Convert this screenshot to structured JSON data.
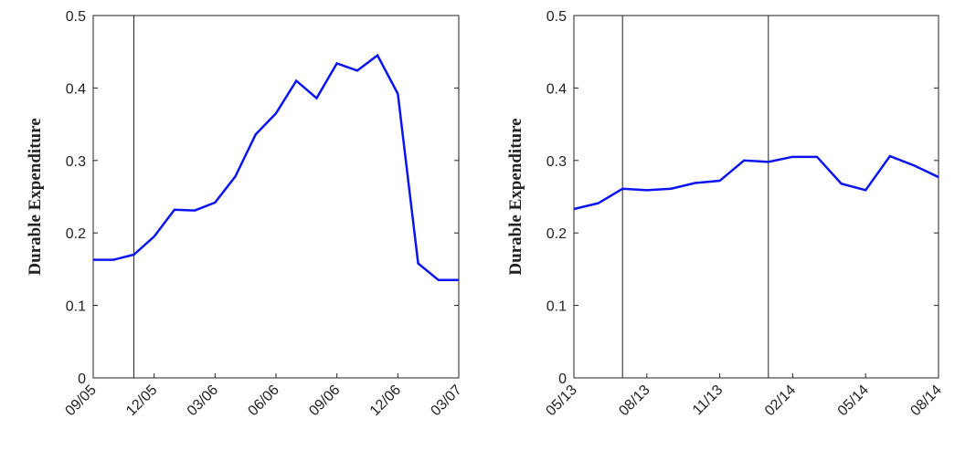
{
  "chart_data": [
    {
      "type": "line",
      "ylabel": "Durable Expenditure",
      "color": "#0a14f0",
      "categories": [
        "09/05",
        null,
        null,
        "12/05",
        null,
        null,
        "03/06",
        null,
        null,
        "06/06",
        null,
        null,
        "09/06",
        null,
        null,
        "12/06",
        null,
        null,
        "03/07"
      ],
      "values": [
        0.163,
        0.163,
        0.17,
        0.195,
        0.232,
        0.231,
        0.242,
        0.278,
        0.336,
        0.365,
        0.41,
        0.386,
        0.434,
        0.424,
        0.445,
        0.392,
        0.158,
        0.135,
        0.135
      ],
      "vlines": [
        2
      ],
      "ylim": [
        0,
        0.5
      ],
      "yticks": [
        0,
        0.1,
        0.2,
        0.3,
        0.4,
        0.5
      ]
    },
    {
      "type": "line",
      "ylabel": "Durable Expenditure",
      "color": "#0a14f0",
      "categories": [
        "05/13",
        null,
        null,
        "08/13",
        null,
        null,
        "11/13",
        null,
        null,
        "02/14",
        null,
        null,
        "05/14",
        null,
        null,
        "08/14"
      ],
      "values": [
        0.233,
        0.241,
        0.261,
        0.259,
        0.261,
        0.269,
        0.272,
        0.3,
        0.298,
        0.305,
        0.305,
        0.268,
        0.259,
        0.306,
        0.293,
        0.277
      ],
      "vlines": [
        2,
        8
      ],
      "ylim": [
        0,
        0.5
      ],
      "yticks": [
        0,
        0.1,
        0.2,
        0.3,
        0.4,
        0.5
      ]
    }
  ]
}
